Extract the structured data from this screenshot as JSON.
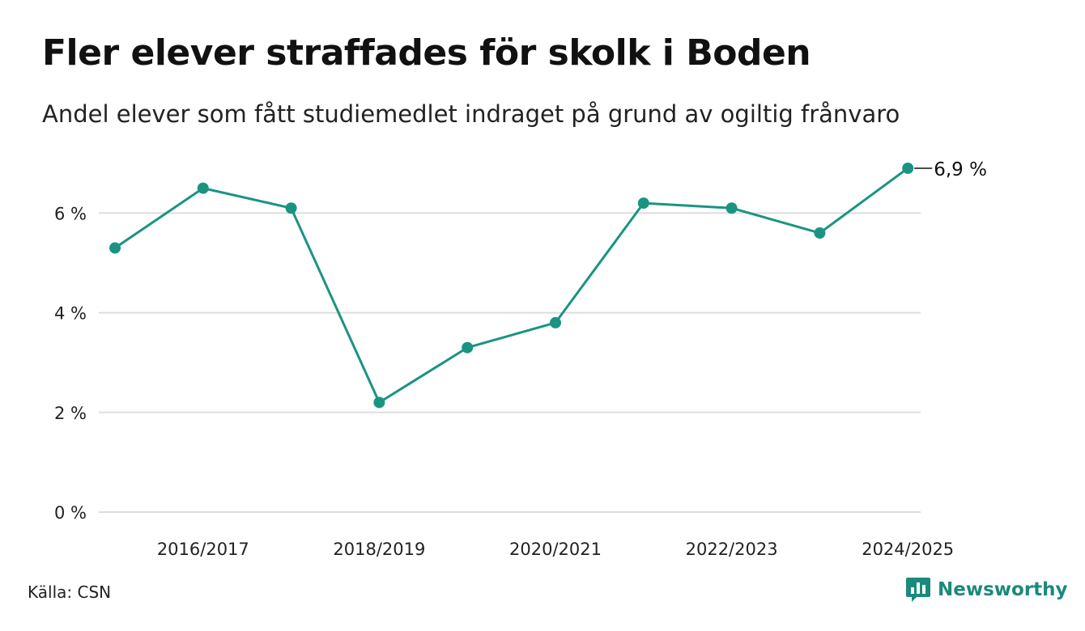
{
  "header": {
    "title": "Fler elever straffades för skolk i Boden",
    "subtitle": "Andel elever som fått studiemedlet indraget på grund av ogiltig frånvaro"
  },
  "footer": {
    "source": "Källa: CSN",
    "brand": "Newsworthy"
  },
  "colors": {
    "line": "#1a9482",
    "grid": "#dddddd",
    "brand": "#1a8a7c"
  },
  "chart_data": {
    "type": "line",
    "title": "Fler elever straffades för skolk i Boden",
    "subtitle": "Andel elever som fått studiemedlet indraget på grund av ogiltig frånvaro",
    "x": [
      "2015/2016",
      "2016/2017",
      "2017/2018",
      "2018/2019",
      "2019/2020",
      "2020/2021",
      "2021/2022",
      "2022/2023",
      "2023/2024",
      "2024/2025"
    ],
    "x_tick_labels": [
      "2016/2017",
      "2018/2019",
      "2020/2021",
      "2022/2023",
      "2024/2025"
    ],
    "series": [
      {
        "values": [
          5.3,
          6.5,
          6.1,
          2.2,
          3.3,
          3.8,
          6.2,
          6.1,
          5.6,
          6.9
        ]
      }
    ],
    "y_ticks": [
      0,
      2,
      4,
      6
    ],
    "y_tick_labels": [
      "0 %",
      "2 %",
      "4 %",
      "6 %"
    ],
    "ylim": [
      0,
      7
    ],
    "end_label": "6,9 %",
    "grid": true,
    "legend": "none"
  }
}
